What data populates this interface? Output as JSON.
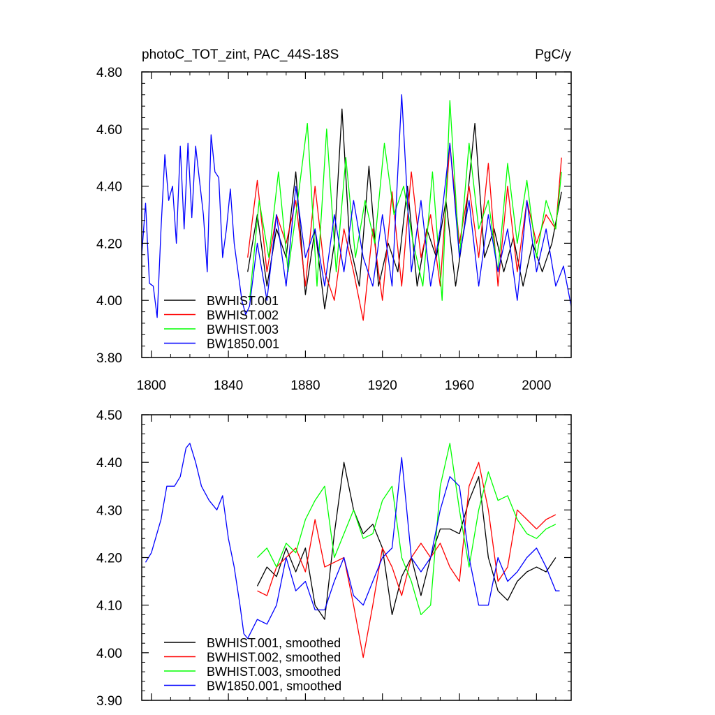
{
  "chart_data": [
    {
      "type": "line",
      "title": "photoC_TOT_zint, PAC_44S-18S",
      "units": "PgC/y",
      "xlim": [
        1795,
        2018
      ],
      "ylim": [
        3.8,
        4.8
      ],
      "xticks": [
        1800,
        1840,
        1880,
        1920,
        1960,
        2000
      ],
      "yticks": [
        3.8,
        4.0,
        4.2,
        4.4,
        4.6,
        4.8
      ],
      "ytick_labels": [
        "3.80",
        "4.00",
        "4.20",
        "4.40",
        "4.60",
        "4.80"
      ],
      "legend_position": "bottom-left",
      "series": [
        {
          "name": "BWHIST.001",
          "color": "#000000",
          "x": [
            1850,
            1855,
            1860,
            1865,
            1870,
            1875,
            1880,
            1885,
            1890,
            1895,
            1899,
            1903,
            1908,
            1913,
            1918,
            1923,
            1928,
            1933,
            1938,
            1943,
            1948,
            1953,
            1958,
            1963,
            1968,
            1973,
            1978,
            1983,
            1988,
            1993,
            1998,
            2003,
            2008,
            2013
          ],
          "y": [
            4.1,
            4.3,
            4.05,
            4.25,
            4.15,
            4.45,
            4.02,
            4.25,
            3.97,
            4.2,
            4.67,
            4.2,
            4.05,
            4.47,
            4.05,
            4.2,
            4.1,
            4.4,
            4.05,
            4.25,
            4.15,
            4.35,
            4.05,
            4.28,
            4.62,
            4.15,
            4.25,
            4.1,
            4.22,
            4.05,
            4.2,
            4.1,
            4.2,
            4.38
          ]
        },
        {
          "name": "BWHIST.002",
          "color": "#ff0000",
          "x": [
            1850,
            1855,
            1860,
            1865,
            1870,
            1875,
            1880,
            1885,
            1890,
            1895,
            1900,
            1905,
            1910,
            1915,
            1920,
            1925,
            1930,
            1935,
            1940,
            1945,
            1950,
            1955,
            1960,
            1965,
            1970,
            1975,
            1980,
            1985,
            1990,
            1995,
            2000,
            2005,
            2010,
            2013
          ],
          "y": [
            4.15,
            4.42,
            4.1,
            4.3,
            4.2,
            4.35,
            4.05,
            4.4,
            4.1,
            4.0,
            4.25,
            4.1,
            3.93,
            4.25,
            4.0,
            4.38,
            4.05,
            4.45,
            4.15,
            4.3,
            4.05,
            4.55,
            4.2,
            4.4,
            4.15,
            4.48,
            4.05,
            4.4,
            4.1,
            4.35,
            4.2,
            4.3,
            4.25,
            4.5
          ]
        },
        {
          "name": "BWHIST.003",
          "color": "#00ff00",
          "x": [
            1851,
            1856,
            1861,
            1866,
            1871,
            1876,
            1881,
            1886,
            1891,
            1896,
            1901,
            1906,
            1911,
            1916,
            1921,
            1926,
            1931,
            1936,
            1941,
            1946,
            1951,
            1955,
            1960,
            1965,
            1970,
            1975,
            1980,
            1985,
            1990,
            1995,
            2000,
            2005,
            2010,
            2013
          ],
          "y": [
            4.0,
            4.35,
            4.15,
            4.45,
            4.1,
            4.35,
            4.62,
            4.05,
            4.6,
            4.1,
            4.5,
            4.15,
            4.35,
            4.2,
            4.55,
            4.3,
            4.4,
            4.2,
            4.05,
            4.45,
            4.0,
            4.7,
            4.15,
            4.55,
            4.25,
            4.35,
            4.1,
            4.48,
            4.2,
            4.42,
            4.15,
            4.35,
            4.25,
            4.45
          ]
        },
        {
          "name": "BW1850.001",
          "color": "#0000ff",
          "x": [
            1795,
            1797,
            1799,
            1801,
            1803,
            1805,
            1807,
            1809,
            1811,
            1813,
            1815,
            1817,
            1819,
            1821,
            1823,
            1825,
            1827,
            1829,
            1831,
            1833,
            1835,
            1837,
            1839,
            1841,
            1843,
            1845,
            1847,
            1849,
            1851,
            1855,
            1860,
            1865,
            1870,
            1875,
            1880,
            1885,
            1890,
            1895,
            1900,
            1905,
            1910,
            1915,
            1920,
            1925,
            1930,
            1935,
            1940,
            1945,
            1950,
            1955,
            1960,
            1965,
            1970,
            1975,
            1980,
            1985,
            1990,
            1995,
            2000,
            2005,
            2010,
            2014,
            2018
          ],
          "y": [
            4.16,
            4.34,
            4.06,
            4.05,
            3.94,
            4.25,
            4.51,
            4.35,
            4.4,
            4.2,
            4.54,
            4.25,
            4.55,
            4.29,
            4.54,
            4.42,
            4.3,
            4.1,
            4.58,
            4.45,
            4.43,
            4.15,
            4.25,
            4.39,
            4.2,
            4.1,
            4.0,
            3.95,
            3.98,
            4.2,
            4.0,
            4.3,
            4.05,
            4.4,
            4.15,
            4.25,
            4.05,
            4.3,
            4.1,
            4.35,
            4.15,
            4.05,
            4.3,
            4.05,
            4.72,
            4.1,
            4.35,
            4.05,
            4.25,
            4.55,
            4.15,
            4.35,
            4.05,
            4.3,
            4.1,
            4.25,
            4.0,
            4.35,
            4.1,
            4.25,
            4.05,
            4.12,
            3.98
          ]
        }
      ]
    },
    {
      "type": "line",
      "title": "",
      "xlim": [
        1795,
        2018
      ],
      "ylim": [
        3.9,
        4.5
      ],
      "xticks": [
        1800,
        1840,
        1880,
        1920,
        1960,
        2000
      ],
      "yticks": [
        3.9,
        4.0,
        4.1,
        4.2,
        4.3,
        4.4,
        4.5
      ],
      "ytick_labels": [
        "3.90",
        "4.00",
        "4.10",
        "4.20",
        "4.30",
        "4.40",
        "4.50"
      ],
      "legend_position": "bottom-left",
      "series": [
        {
          "name": "BWHIST.001, smoothed",
          "color": "#000000",
          "x": [
            1855,
            1860,
            1865,
            1870,
            1875,
            1880,
            1885,
            1890,
            1895,
            1900,
            1905,
            1910,
            1915,
            1920,
            1925,
            1930,
            1935,
            1940,
            1945,
            1950,
            1955,
            1960,
            1965,
            1970,
            1975,
            1980,
            1985,
            1990,
            1995,
            2000,
            2005,
            2010
          ],
          "y": [
            4.14,
            4.18,
            4.16,
            4.22,
            4.17,
            4.22,
            4.1,
            4.07,
            4.25,
            4.4,
            4.3,
            4.25,
            4.27,
            4.22,
            4.08,
            4.16,
            4.2,
            4.12,
            4.2,
            4.26,
            4.26,
            4.25,
            4.32,
            4.37,
            4.2,
            4.13,
            4.11,
            4.15,
            4.17,
            4.18,
            4.17,
            4.2
          ]
        },
        {
          "name": "BWHIST.002, smoothed",
          "color": "#ff0000",
          "x": [
            1855,
            1860,
            1865,
            1870,
            1875,
            1880,
            1885,
            1890,
            1895,
            1900,
            1905,
            1910,
            1915,
            1920,
            1925,
            1930,
            1935,
            1940,
            1945,
            1950,
            1955,
            1960,
            1965,
            1970,
            1975,
            1980,
            1985,
            1990,
            1995,
            2000,
            2005,
            2010
          ],
          "y": [
            4.13,
            4.12,
            4.18,
            4.2,
            4.22,
            4.17,
            4.28,
            4.18,
            4.19,
            4.2,
            4.1,
            3.99,
            4.1,
            4.22,
            4.18,
            4.12,
            4.2,
            4.23,
            4.2,
            4.23,
            4.18,
            4.15,
            4.35,
            4.4,
            4.3,
            4.15,
            4.18,
            4.3,
            4.28,
            4.26,
            4.28,
            4.29
          ]
        },
        {
          "name": "BWHIST.003, smoothed",
          "color": "#00ff00",
          "x": [
            1855,
            1860,
            1865,
            1870,
            1875,
            1880,
            1885,
            1890,
            1895,
            1900,
            1905,
            1910,
            1915,
            1920,
            1925,
            1930,
            1935,
            1940,
            1945,
            1950,
            1955,
            1960,
            1965,
            1970,
            1975,
            1980,
            1985,
            1990,
            1995,
            2000,
            2005,
            2010
          ],
          "y": [
            4.2,
            4.22,
            4.18,
            4.23,
            4.21,
            4.28,
            4.32,
            4.35,
            4.2,
            4.25,
            4.3,
            4.24,
            4.25,
            4.32,
            4.35,
            4.2,
            4.15,
            4.08,
            4.1,
            4.35,
            4.44,
            4.3,
            4.18,
            4.3,
            4.38,
            4.32,
            4.33,
            4.28,
            4.25,
            4.24,
            4.26,
            4.27
          ]
        },
        {
          "name": "BW1850.001, smoothed",
          "color": "#0000ff",
          "x": [
            1797,
            1800,
            1805,
            1808,
            1812,
            1815,
            1818,
            1820,
            1823,
            1826,
            1830,
            1834,
            1837,
            1840,
            1843,
            1846,
            1848,
            1850,
            1855,
            1860,
            1865,
            1870,
            1875,
            1880,
            1885,
            1890,
            1895,
            1900,
            1905,
            1910,
            1915,
            1920,
            1925,
            1930,
            1935,
            1940,
            1945,
            1950,
            1955,
            1960,
            1965,
            1970,
            1975,
            1980,
            1985,
            1990,
            1995,
            2000,
            2005,
            2010,
            2012
          ],
          "y": [
            4.19,
            4.21,
            4.28,
            4.35,
            4.35,
            4.37,
            4.43,
            4.44,
            4.4,
            4.35,
            4.32,
            4.3,
            4.33,
            4.24,
            4.18,
            4.1,
            4.04,
            4.03,
            4.07,
            4.06,
            4.1,
            4.2,
            4.13,
            4.15,
            4.09,
            4.09,
            4.15,
            4.2,
            4.12,
            4.1,
            4.15,
            4.2,
            4.22,
            4.41,
            4.2,
            4.17,
            4.2,
            4.3,
            4.37,
            4.35,
            4.2,
            4.1,
            4.1,
            4.2,
            4.15,
            4.17,
            4.2,
            4.22,
            4.18,
            4.13,
            4.13
          ]
        }
      ]
    }
  ]
}
